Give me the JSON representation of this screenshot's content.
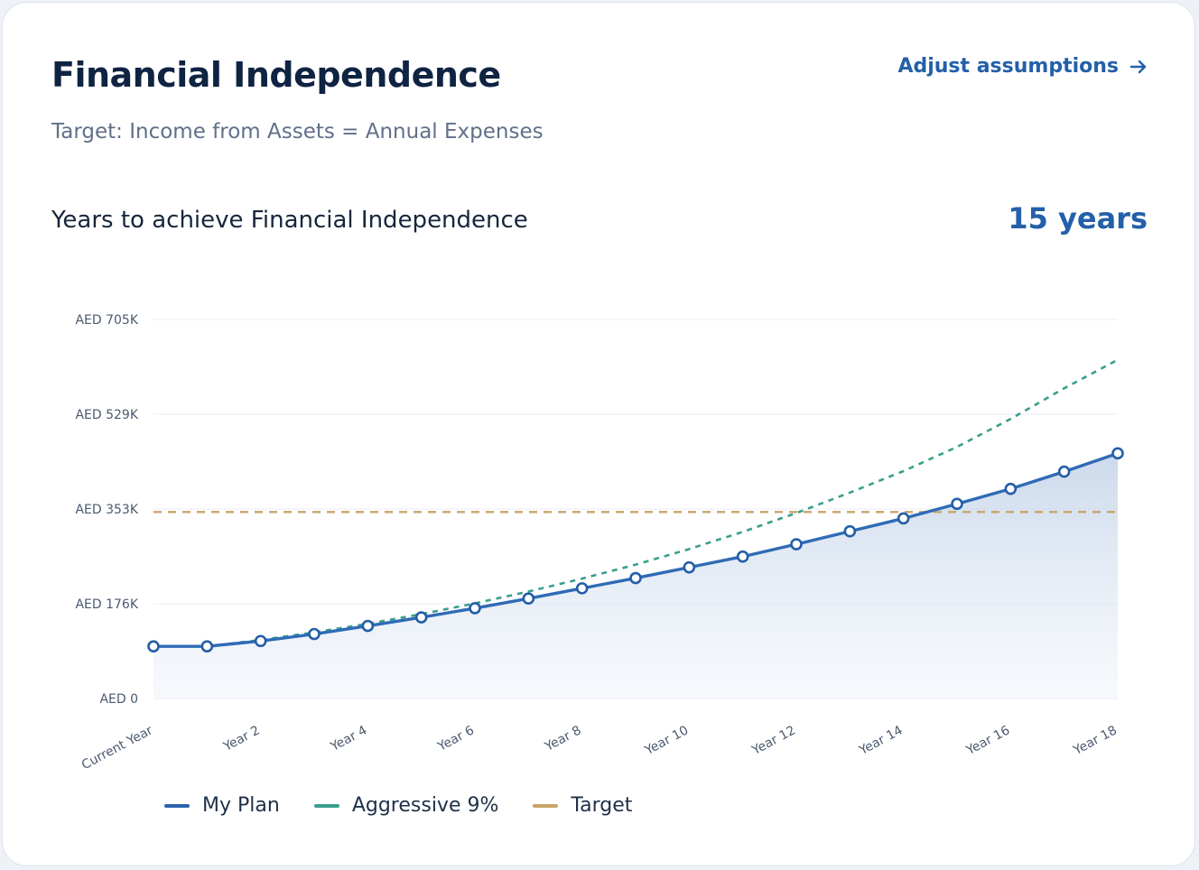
{
  "header": {
    "title": "Financial Independence",
    "subtitle": "Target: Income from Assets = Annual Expenses",
    "adjust_link": "Adjust assumptions"
  },
  "summary": {
    "label": "Years to achieve Financial Independence",
    "value": "15 years"
  },
  "legend": [
    {
      "label": "My Plan",
      "color": "#2a64b0"
    },
    {
      "label": "Aggressive 9%",
      "color": "#3a9e8c"
    },
    {
      "label": "Target",
      "color": "#c9a46a"
    }
  ],
  "chart_data": {
    "type": "line",
    "x": [
      "Current Year",
      "Year 1",
      "Year 2",
      "Year 3",
      "Year 4",
      "Year 5",
      "Year 6",
      "Year 7",
      "Year 8",
      "Year 9",
      "Year 10",
      "Year 11",
      "Year 12",
      "Year 13",
      "Year 14",
      "Year 15",
      "Year 16",
      "Year 17",
      "Year 18"
    ],
    "xtick_labels": [
      "Current Year",
      "Year 2",
      "Year 4",
      "Year 6",
      "Year 8",
      "Year 10",
      "Year 12",
      "Year 14",
      "Year 16",
      "Year 18"
    ],
    "ytick_labels": [
      "AED 0",
      "AED 176K",
      "AED 353K",
      "AED 529K",
      "AED 705K"
    ],
    "ylim": [
      0,
      705
    ],
    "y_unit": "AED thousands",
    "grid": true,
    "legend_position": "bottom-left",
    "series": [
      {
        "name": "My Plan",
        "color": "#2a64b0",
        "style": "solid-markers-area",
        "values": [
          97,
          97,
          107,
          120,
          135,
          151,
          168,
          186,
          205,
          224,
          244,
          264,
          287,
          311,
          335,
          362,
          390,
          422,
          456
        ]
      },
      {
        "name": "Aggressive 9%",
        "color": "#3a9e8c",
        "style": "dashed",
        "values": [
          97,
          97,
          109,
          123,
          139,
          157,
          177,
          199,
          223,
          249,
          278,
          310,
          345,
          383,
          423,
          468,
          520,
          577,
          630
        ]
      },
      {
        "name": "Target",
        "color": "#c9a46a",
        "style": "dashed",
        "values": [
          347,
          347,
          347,
          347,
          347,
          347,
          347,
          347,
          347,
          347,
          347,
          347,
          347,
          347,
          347,
          347,
          347,
          347,
          347
        ]
      }
    ]
  }
}
